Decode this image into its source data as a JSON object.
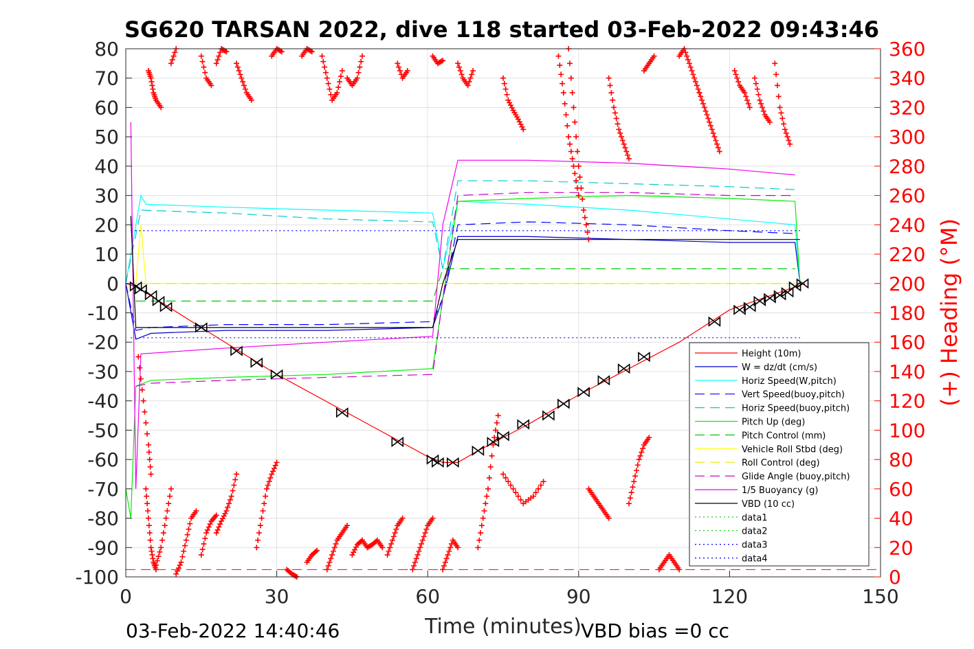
{
  "chart_data": {
    "type": "line",
    "title": "SG620 TARSAN 2022, dive 118 started 03-Feb-2022 09:43:46",
    "xlabel": "Time (minutes)",
    "ylabel_right": "(+) Heading (°M)",
    "xlim": [
      0,
      150
    ],
    "ylim_left": [
      -100,
      80
    ],
    "ylim_right": [
      0,
      360
    ],
    "x_ticks": [
      "0",
      "30",
      "60",
      "90",
      "120",
      "150"
    ],
    "y_ticks_left": [
      "80",
      "70",
      "60",
      "50",
      "40",
      "30",
      "20",
      "10",
      "0",
      "-10",
      "-20",
      "-30",
      "-40",
      "-50",
      "-60",
      "-70",
      "-80",
      "-90",
      "-100"
    ],
    "y_ticks_right": [
      "360",
      "340",
      "320",
      "300",
      "280",
      "260",
      "240",
      "220",
      "200",
      "180",
      "160",
      "140",
      "120",
      "100",
      "80",
      "60",
      "40",
      "20",
      "0"
    ],
    "grid": true,
    "legend_position": "bottom-right",
    "footer_left": "03-Feb-2022 14:40:46",
    "footer_right": "VBD bias =0 cc",
    "colors": {
      "height": "#ff0000",
      "w": "#0000cc",
      "horiz": "#00ffff",
      "vert_buoy": "#0000ff",
      "horiz_buoy": "#00cccc",
      "pitch": "#00ee00",
      "pitch_ctrl": "#00cc00",
      "roll": "#ffff00",
      "roll_ctrl": "#e6e600",
      "glide": "#cc00cc",
      "buoyancy": "#ee00ee",
      "vbd": "#000000",
      "heading": "#ff0000"
    },
    "series": [
      {
        "name": "Height (10m)",
        "style": "solid",
        "color": "#ff0000",
        "x": [
          0,
          2,
          15,
          30,
          45,
          60,
          63,
          66,
          70,
          80,
          90,
          100,
          110,
          120,
          130,
          135
        ],
        "y": [
          0,
          -1,
          -15,
          -31,
          -45,
          -59,
          -61,
          -61,
          -57,
          -48,
          -38,
          -29,
          -20,
          -9,
          -3,
          0
        ]
      },
      {
        "name": "W = dz/dt (cm/s)",
        "style": "solid",
        "color": "#0000cc",
        "x": [
          0,
          2,
          5,
          20,
          40,
          61,
          63,
          66,
          80,
          100,
          120,
          133,
          134
        ],
        "y": [
          0,
          -19,
          -17,
          -16,
          -16,
          -15,
          -5,
          16,
          16,
          15,
          14,
          14,
          0
        ]
      },
      {
        "name": "Horiz Speed(W,pitch)",
        "style": "solid",
        "color": "#00ffff",
        "x": [
          0,
          3,
          4,
          20,
          40,
          61,
          63,
          66,
          80,
          100,
          120,
          133,
          134
        ],
        "y": [
          0,
          30,
          27,
          26,
          25,
          24,
          5,
          28,
          27,
          25,
          22,
          20,
          0
        ]
      },
      {
        "name": "Vert Speed(buoy,pitch)",
        "style": "dashed",
        "color": "#0000ff",
        "x": [
          0,
          2,
          5,
          20,
          40,
          61,
          63,
          66,
          80,
          100,
          120,
          133
        ],
        "y": [
          0,
          -16,
          -15,
          -14,
          -14,
          -13,
          -5,
          20,
          21,
          20,
          18,
          17
        ]
      },
      {
        "name": "Horiz Speed(buoy,pitch)",
        "style": "dashed",
        "color": "#00cccc",
        "x": [
          0,
          3,
          20,
          40,
          61,
          63,
          66,
          80,
          100,
          120,
          133
        ],
        "y": [
          0,
          25,
          24,
          22,
          21,
          5,
          35,
          35,
          34,
          33,
          32
        ]
      },
      {
        "name": "Pitch Up (deg)",
        "style": "solid",
        "color": "#00ee00",
        "x": [
          0,
          1,
          2,
          5,
          20,
          40,
          61,
          63,
          66,
          80,
          100,
          120,
          133,
          134
        ],
        "y": [
          -70,
          -80,
          -35,
          -33,
          -32,
          -31,
          -29,
          -5,
          28,
          29,
          30,
          29,
          28,
          0
        ]
      },
      {
        "name": "Pitch Control (mm)",
        "style": "dashed",
        "color": "#00cc00",
        "x": [
          2,
          61,
          63,
          133
        ],
        "y": [
          -6,
          -6,
          5,
          5
        ]
      },
      {
        "name": "Vehicle Roll Stbd (deg)",
        "style": "solid",
        "color": "#ffff00",
        "x": [
          2,
          3,
          4,
          20,
          40,
          61,
          63,
          66,
          80,
          100,
          120,
          133
        ],
        "y": [
          0,
          20,
          0,
          0,
          0,
          0,
          0,
          0,
          0,
          0,
          0,
          0
        ]
      },
      {
        "name": "Roll Control (deg)",
        "style": "dashed",
        "color": "#e6e600",
        "x": [
          2,
          133
        ],
        "y": [
          0,
          0
        ]
      },
      {
        "name": "Glide Angle (buoy,pitch)",
        "style": "dashed",
        "color": "#cc00cc",
        "x": [
          2,
          5,
          20,
          40,
          61,
          63,
          66,
          80,
          100,
          120,
          133
        ],
        "y": [
          -35,
          -34,
          -33,
          -32,
          -31,
          -5,
          30,
          31,
          31,
          30,
          30
        ]
      },
      {
        "name": "1/5 Buoyancy (g)",
        "style": "solid",
        "color": "#ee00ee",
        "x": [
          1,
          2,
          3,
          20,
          40,
          61,
          63,
          66,
          80,
          100,
          120,
          133
        ],
        "y": [
          55,
          -70,
          -24,
          -22,
          -20,
          -18,
          20,
          42,
          42,
          41,
          39,
          37
        ]
      },
      {
        "name": "VBD (10 cc)",
        "style": "solid",
        "color": "#000000",
        "x": [
          1,
          2,
          20,
          40,
          61,
          63,
          66,
          80,
          100,
          120,
          134
        ],
        "y": [
          23,
          -15,
          -15,
          -15,
          -15,
          0,
          15,
          15,
          15,
          15,
          15
        ]
      },
      {
        "name": "data1",
        "style": "dotted",
        "color": "#00cc00",
        "x": [],
        "y": []
      },
      {
        "name": "data2",
        "style": "dotted",
        "color": "#00cc00",
        "x": [],
        "y": []
      },
      {
        "name": "data3",
        "style": "dotted",
        "color": "#0000ff",
        "x": [
          1,
          134
        ],
        "y": [
          18,
          18
        ]
      },
      {
        "name": "data4",
        "style": "dotted",
        "color": "#0000ff",
        "x": [
          1,
          134
        ],
        "y": [
          -18.5,
          -18.5
        ]
      }
    ],
    "reference_lines": [
      {
        "axis": "right",
        "style": "dashed",
        "color": "#ff0000",
        "y": 5
      }
    ],
    "markers": {
      "x": [
        2,
        3,
        5,
        6.5,
        8,
        15,
        22,
        26,
        30,
        43,
        54,
        61,
        62,
        65,
        70,
        73,
        75,
        79,
        84,
        87,
        91,
        95,
        99,
        103,
        117,
        122,
        124,
        126,
        128,
        130,
        131.5,
        133,
        134.5
      ],
      "y": [
        -1,
        -2,
        -4,
        -6,
        -8,
        -15,
        -23,
        -27,
        -31,
        -44,
        -54,
        -60,
        -61,
        -61,
        -57,
        -54,
        -52,
        -48,
        -45,
        -41,
        -37,
        -33,
        -29,
        -25,
        -13,
        -9,
        -8,
        -6,
        -5,
        -4,
        -3,
        -1,
        0
      ]
    },
    "heading": {
      "name": "(+) Heading (°M)",
      "segments": [
        {
          "x": [
            2.5,
            3.5,
            4.5,
            5
          ],
          "y": [
            150,
            120,
            90,
            70
          ]
        },
        {
          "x": [
            4,
            4.5,
            5,
            5.5,
            6
          ],
          "y": [
            60,
            40,
            20,
            10,
            5
          ]
        },
        {
          "x": [
            4.5,
            5,
            5.5,
            6,
            7
          ],
          "y": [
            345,
            340,
            330,
            325,
            320
          ]
        },
        {
          "x": [
            6,
            7,
            8,
            9
          ],
          "y": [
            8,
            20,
            40,
            60
          ]
        },
        {
          "x": [
            9,
            10
          ],
          "y": [
            350,
            360
          ]
        },
        {
          "x": [
            10,
            11,
            12,
            13,
            14
          ],
          "y": [
            2,
            10,
            25,
            40,
            45
          ]
        },
        {
          "x": [
            15,
            16,
            17
          ],
          "y": [
            355,
            340,
            335
          ]
        },
        {
          "x": [
            15,
            16,
            17,
            18
          ],
          "y": [
            15,
            30,
            38,
            42
          ]
        },
        {
          "x": [
            18,
            19,
            20
          ],
          "y": [
            350,
            360,
            358
          ]
        },
        {
          "x": [
            18,
            19,
            20,
            21,
            22
          ],
          "y": [
            30,
            38,
            45,
            55,
            70
          ]
        },
        {
          "x": [
            22,
            23,
            24,
            25
          ],
          "y": [
            350,
            340,
            330,
            325
          ]
        },
        {
          "x": [
            26,
            27,
            28,
            29,
            30
          ],
          "y": [
            20,
            40,
            60,
            70,
            78
          ]
        },
        {
          "x": [
            29,
            30,
            31
          ],
          "y": [
            355,
            360,
            358
          ]
        },
        {
          "x": [
            32,
            33,
            34
          ],
          "y": [
            5,
            2,
            0
          ]
        },
        {
          "x": [
            35,
            36,
            37
          ],
          "y": [
            355,
            360,
            358
          ]
        },
        {
          "x": [
            36,
            37,
            38
          ],
          "y": [
            10,
            15,
            18
          ]
        },
        {
          "x": [
            39,
            40,
            41,
            42,
            43
          ],
          "y": [
            355,
            340,
            325,
            330,
            345
          ]
        },
        {
          "x": [
            40,
            41,
            42,
            43,
            44
          ],
          "y": [
            5,
            15,
            25,
            30,
            35
          ]
        },
        {
          "x": [
            44,
            45,
            46,
            47
          ],
          "y": [
            340,
            335,
            340,
            355
          ]
        },
        {
          "x": [
            45,
            46,
            47,
            48,
            49,
            50,
            51
          ],
          "y": [
            15,
            22,
            25,
            20,
            22,
            25,
            20
          ]
        },
        {
          "x": [
            52,
            53,
            54,
            55
          ],
          "y": [
            15,
            25,
            35,
            40
          ]
        },
        {
          "x": [
            54,
            55,
            56
          ],
          "y": [
            350,
            340,
            345
          ]
        },
        {
          "x": [
            57,
            58,
            59,
            60,
            61
          ],
          "y": [
            5,
            15,
            25,
            35,
            40
          ]
        },
        {
          "x": [
            61,
            62,
            63
          ],
          "y": [
            355,
            350,
            352
          ]
        },
        {
          "x": [
            63,
            64,
            65,
            66
          ],
          "y": [
            5,
            15,
            25,
            20
          ]
        },
        {
          "x": [
            66,
            67,
            68,
            69
          ],
          "y": [
            350,
            340,
            335,
            345
          ]
        },
        {
          "x": [
            70,
            71,
            72,
            73,
            74
          ],
          "y": [
            20,
            40,
            60,
            90,
            110
          ]
        },
        {
          "x": [
            75,
            76,
            77,
            78,
            79
          ],
          "y": [
            340,
            325,
            318,
            312,
            305
          ]
        },
        {
          "x": [
            75,
            77,
            79,
            81,
            83
          ],
          "y": [
            70,
            60,
            50,
            55,
            65
          ]
        },
        {
          "x": [
            86,
            87,
            88,
            89,
            90
          ],
          "y": [
            355,
            330,
            300,
            280,
            260
          ]
        },
        {
          "x": [
            88,
            89,
            90,
            91,
            92
          ],
          "y": [
            360,
            320,
            280,
            250,
            230
          ]
        },
        {
          "x": [
            92,
            93,
            94,
            95,
            96
          ],
          "y": [
            60,
            55,
            50,
            45,
            40
          ]
        },
        {
          "x": [
            96,
            97,
            98,
            99,
            100
          ],
          "y": [
            340,
            320,
            305,
            295,
            285
          ]
        },
        {
          "x": [
            100,
            101,
            102,
            103,
            104
          ],
          "y": [
            50,
            65,
            80,
            90,
            95
          ]
        },
        {
          "x": [
            103,
            104,
            105
          ],
          "y": [
            345,
            350,
            355
          ]
        },
        {
          "x": [
            106,
            107,
            108,
            109,
            110
          ],
          "y": [
            5,
            10,
            15,
            10,
            5
          ]
        },
        {
          "x": [
            110,
            111,
            112,
            113,
            114
          ],
          "y": [
            355,
            360,
            350,
            340,
            330
          ]
        },
        {
          "x": [
            114,
            115,
            116,
            117,
            118
          ],
          "y": [
            330,
            320,
            310,
            300,
            290
          ]
        },
        {
          "x": [
            121,
            122,
            123,
            124
          ],
          "y": [
            345,
            335,
            330,
            320
          ]
        },
        {
          "x": [
            125,
            126,
            127,
            128
          ],
          "y": [
            340,
            325,
            315,
            310
          ]
        },
        {
          "x": [
            129,
            130,
            131,
            132
          ],
          "y": [
            350,
            320,
            305,
            295
          ]
        }
      ]
    },
    "legend": [
      "Height (10m)",
      "W = dz/dt (cm/s)",
      "Horiz Speed(W,pitch)",
      "Vert Speed(buoy,pitch)",
      "Horiz Speed(buoy,pitch)",
      "Pitch Up (deg)",
      "Pitch Control (mm)",
      "Vehicle Roll Stbd (deg)",
      "Roll Control (deg)",
      "Glide Angle (buoy,pitch)",
      "1/5 Buoyancy (g)",
      "VBD (10 cc)",
      "data1",
      "data2",
      "data3",
      "data4"
    ]
  }
}
